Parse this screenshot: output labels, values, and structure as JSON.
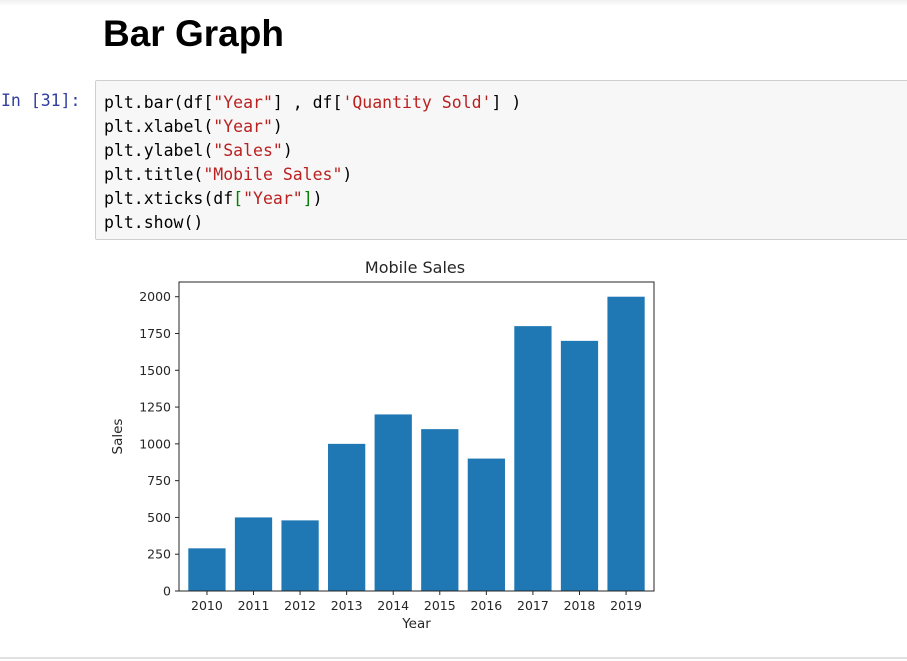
{
  "heading": "Bar Graph",
  "cell": {
    "prompt": "In [31]:",
    "code": [
      [
        {
          "t": "plt.bar(df["
        },
        {
          "t": "\"Year\"",
          "c": "str"
        },
        {
          "t": "] , df["
        },
        {
          "t": "'Quantity Sold'",
          "c": "str"
        },
        {
          "t": "] )"
        }
      ],
      [
        {
          "t": "plt.xlabel("
        },
        {
          "t": "\"Year\"",
          "c": "str"
        },
        {
          "t": ")"
        }
      ],
      [
        {
          "t": "plt.ylabel("
        },
        {
          "t": "\"Sales\"",
          "c": "str"
        },
        {
          "t": ")"
        }
      ],
      [
        {
          "t": "plt.title("
        },
        {
          "t": "\"Mobile Sales\"",
          "c": "str"
        },
        {
          "t": ")"
        }
      ],
      [
        {
          "t": "plt.xticks(df"
        },
        {
          "t": "[",
          "c": "br"
        },
        {
          "t": "\"Year\"",
          "c": "str"
        },
        {
          "t": "]",
          "c": "br"
        },
        {
          "t": ")"
        }
      ],
      [
        {
          "t": "plt.show()"
        }
      ]
    ]
  },
  "chart_data": {
    "type": "bar",
    "title": "Mobile Sales",
    "xlabel": "Year",
    "ylabel": "Sales",
    "categories": [
      "2010",
      "2011",
      "2012",
      "2013",
      "2014",
      "2015",
      "2016",
      "2017",
      "2018",
      "2019"
    ],
    "values": [
      290,
      500,
      480,
      1000,
      1200,
      1100,
      900,
      1800,
      1700,
      2000
    ],
    "ylim": [
      0,
      2100
    ],
    "yticks": [
      0,
      250,
      500,
      750,
      1000,
      1250,
      1500,
      1750,
      2000
    ],
    "bar_color": "#1f77b4",
    "grid": false
  }
}
